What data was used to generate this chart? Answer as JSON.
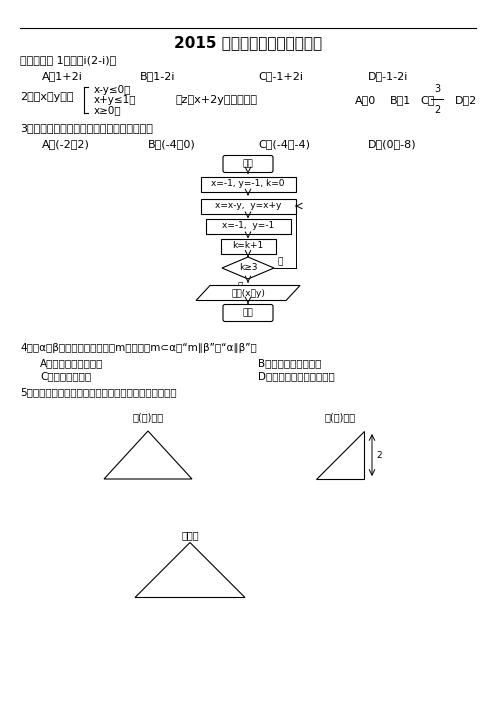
{
  "title": "2015 年北京高考数学（理科）",
  "bg_color": "#ffffff",
  "text_color": "#000000",
  "section1_header": "一、选择题 1．复数i(2-i)＝",
  "q1_options": [
    "A．1+2i",
    "B．1-2i",
    "C．-1+2i",
    "D．-1-2i"
  ],
  "q2_text": "2．若x，y满足",
  "q2_conditions": [
    "x-y≤0，",
    "x+y≤1，",
    "x≥0，"
  ],
  "q2_tail": "则z＝x+2y的最大値为",
  "q2_options": [
    "A．0",
    "B．1",
    "C．3/2",
    "D．2"
  ],
  "q3_text": "3．执行如图所示的程序框图，输出的结果为",
  "q3_options": [
    "A．(-2，2)",
    "B．(-4，0)",
    "C．(-4，-4)",
    "D．(0，-8)"
  ],
  "fc_labels": [
    "开始",
    "x=-1, y=-1, k=0",
    "x=x-y,  y=x+y",
    "x=-1,  y=-1",
    "k=k+1",
    "k≥3",
    "输出(x，y)",
    "结束"
  ],
  "q4_text": "4．设α，β是两个不同的平面，m是直线且m⊂α，“m∥β”是“α∥β”的",
  "q4_options_row1": [
    "A．充分而不必要条件",
    "B．必要而不充分条件"
  ],
  "q4_options_row2": [
    "C．充分必要条件",
    "D．既不充分也不必要条件"
  ],
  "q5_text": "5．某三棱锥的三视图如图所示，则该三棱锥的表面积是",
  "label_front": "正(主)视图",
  "label_side": "侧(左)视图",
  "label_top": "䯰视图"
}
